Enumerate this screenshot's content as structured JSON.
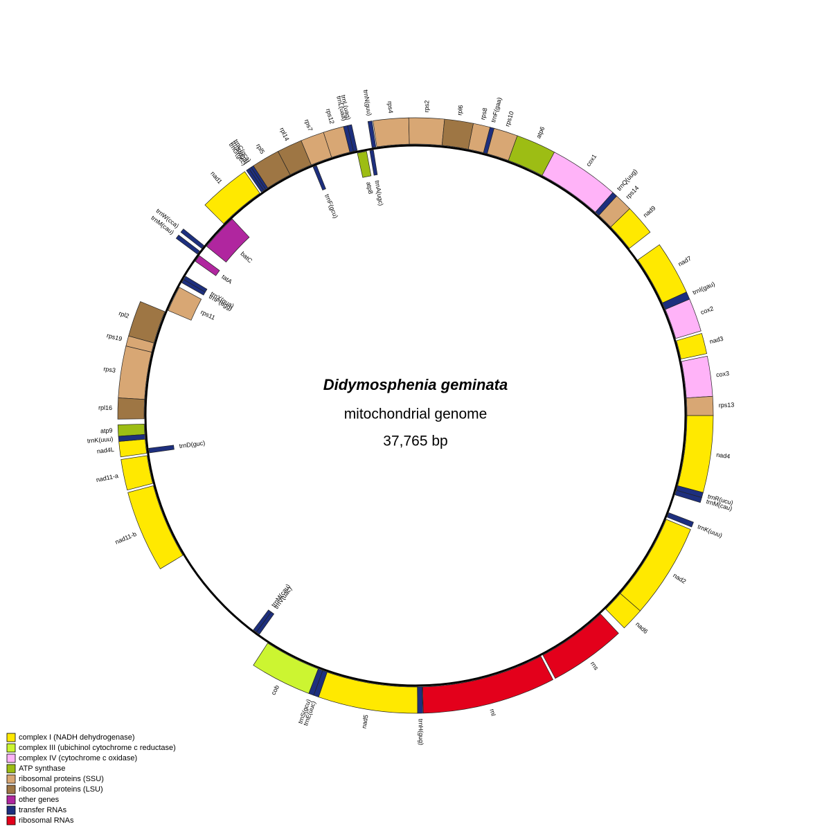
{
  "title": "Didymosphenia geminata",
  "subtitle": "mitochondrial genome",
  "length": "37,765 bp",
  "groups": [
    {
      "label": "complex I (NADH dehydrogenase)",
      "color": "#ffe900",
      "genes": [
        "nad1",
        "nad9",
        "nad7",
        "nad3",
        "nad4",
        "nad2",
        "nad6",
        "nad5",
        "nad11-b",
        "nad11-a",
        "nad4L"
      ]
    },
    {
      "label": "complex III (ubichinol cytochrome c reductase)",
      "color": "#ccf531",
      "genes": [
        "cob"
      ]
    },
    {
      "label": "complex IV (cytochrome c oxidase)",
      "color": "#ffb3f8",
      "genes": [
        "cox1",
        "cox2",
        "cox3"
      ]
    },
    {
      "label": "ATP synthase",
      "color": "#9dbd14",
      "genes": [
        "atp8",
        "atp6",
        "atp9"
      ]
    },
    {
      "label": "ribosomal proteins (SSU)",
      "color": "#d8a774",
      "genes": [
        "rps7",
        "rps12",
        "rps4",
        "rps2",
        "rps8",
        "rps10",
        "rps14",
        "rps13",
        "rps3",
        "rps19",
        "rps11"
      ]
    },
    {
      "label": "ribosomal proteins (LSU)",
      "color": "#9e7644",
      "genes": [
        "rpl5",
        "rpl14",
        "rpl6",
        "rpl16",
        "rpl2"
      ]
    },
    {
      "label": "other genes",
      "color": "#b0269f",
      "genes": [
        "batC",
        "tatA"
      ]
    },
    {
      "label": "transfer RNAs",
      "color": "#1d2f7e",
      "genes": [
        "trnG(gcc)",
        "trnS(uga)",
        "trnC(gca)",
        "trnF(gcu)",
        "trnL(uaa)",
        "trnL(uag)",
        "trnN(guu)",
        "trnA(ugc)",
        "trnF(gaa)",
        "trnQ(uug)",
        "trnI(gau)",
        "trnR(ucu)",
        "trnM(cau)",
        "trnK(uuu)",
        "trnH(gug)",
        "trnE(uuc)",
        "trnS(gcu)",
        "trnV(uac)",
        "trnM(cau)",
        "trnD(guc)",
        "trnK(uuu)",
        "trnP(ugg)",
        "trnY(gua)",
        "trnM(cau)",
        "trnW(cca)"
      ]
    },
    {
      "label": "ribosomal RNAs",
      "color": "#e3001b",
      "genes": [
        "rns",
        "rnl"
      ]
    }
  ]
}
